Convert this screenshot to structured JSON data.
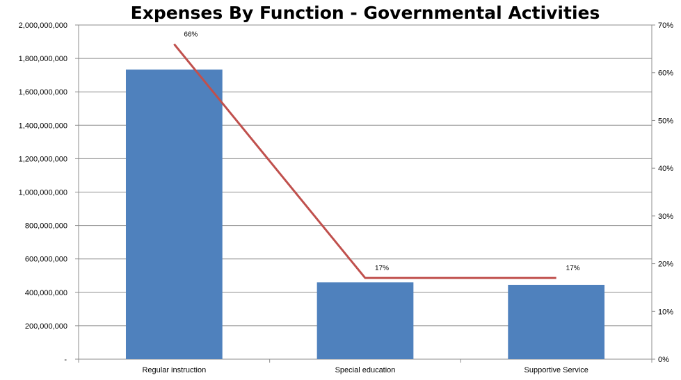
{
  "chart_data": {
    "type": "bar",
    "title": "Expenses By Function - Governmental Activities",
    "categories": [
      "Regular instruction",
      "Special education",
      "Supportive Service"
    ],
    "series": [
      {
        "type": "bar",
        "axis": "left",
        "values": [
          1733000000,
          460000000,
          445000000
        ],
        "color": "#4F81BD"
      },
      {
        "type": "line",
        "axis": "right",
        "values": [
          66,
          17,
          17
        ],
        "data_labels": [
          "66%",
          "17%",
          "17%"
        ],
        "color": "#C0504D"
      }
    ],
    "ylim": [
      0,
      2000000000
    ],
    "y_ticks": [
      "-",
      "200,000,000",
      "400,000,000",
      "600,000,000",
      "800,000,000",
      "1,000,000,000",
      "1,200,000,000",
      "1,400,000,000",
      "1,600,000,000",
      "1,800,000,000",
      "2,000,000,000"
    ],
    "y2lim": [
      0,
      70
    ],
    "y2_ticks": [
      "0%",
      "10%",
      "20%",
      "30%",
      "40%",
      "50%",
      "60%",
      "70%"
    ],
    "grid": true,
    "legend": "none"
  }
}
